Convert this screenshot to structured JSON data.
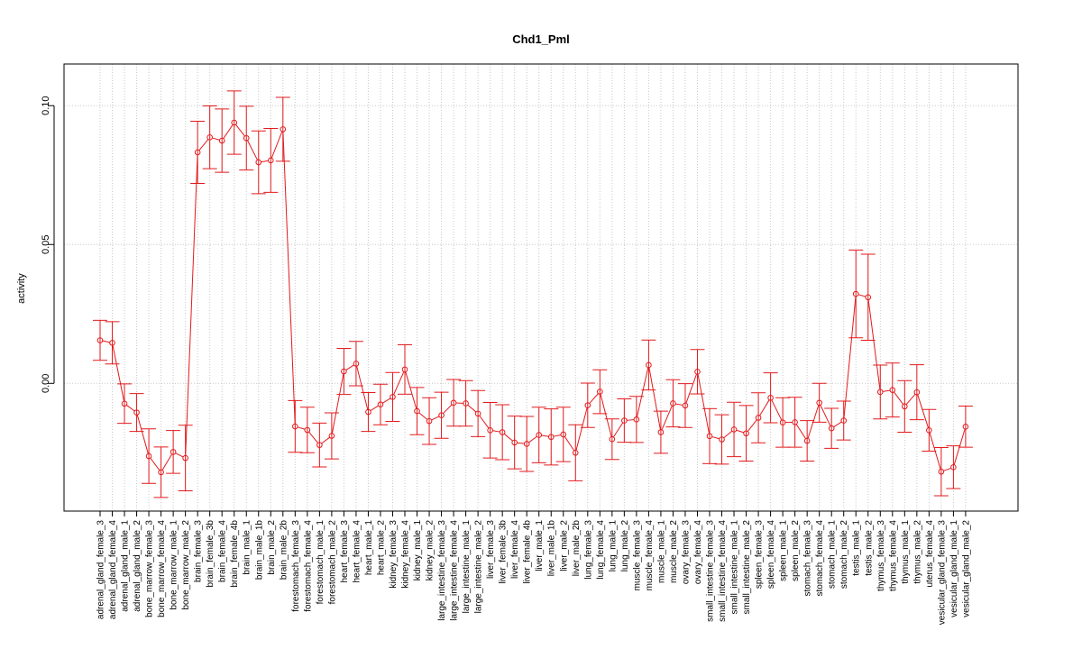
{
  "chart_data": {
    "type": "line",
    "title": "Chd1_Pml",
    "xlabel": "",
    "ylabel": "activity",
    "ylim": [
      -0.046,
      0.115
    ],
    "yticks": [
      0.0,
      0.05,
      0.1
    ],
    "ytick_labels": [
      "0.00",
      "0.05",
      "0.10"
    ],
    "grid": true,
    "grid_style": "dotted",
    "series_color": "#e31a1c",
    "categories": [
      "adrenal_gland_female_3",
      "adrenal_gland_female_4",
      "adrenal_gland_male_1",
      "adrenal_gland_male_2",
      "bone_marrow_female_3",
      "bone_marrow_female_4",
      "bone_marrow_male_1",
      "bone_marrow_male_2",
      "brain_female_3",
      "brain_female_3b",
      "brain_female_4",
      "brain_female_4b",
      "brain_male_1",
      "brain_male_1b",
      "brain_male_2",
      "brain_male_2b",
      "forestomach_female_3",
      "forestomach_female_4",
      "forestomach_male_1",
      "forestomach_male_2",
      "heart_female_3",
      "heart_female_4",
      "heart_male_1",
      "heart_male_2",
      "kidney_female_3",
      "kidney_female_4",
      "kidney_male_1",
      "kidney_male_2",
      "large_intestine_female_3",
      "large_intestine_female_4",
      "large_intestine_male_1",
      "large_intestine_male_2",
      "liver_female_3",
      "liver_female_3b",
      "liver_female_4",
      "liver_female_4b",
      "liver_male_1",
      "liver_male_1b",
      "liver_male_2",
      "liver_male_2b",
      "lung_female_3",
      "lung_female_4",
      "lung_male_1",
      "lung_male_2",
      "muscle_female_3",
      "muscle_female_4",
      "muscle_male_1",
      "muscle_male_2",
      "ovary_female_3",
      "ovary_female_4",
      "small_intestine_female_3",
      "small_intestine_female_4",
      "small_intestine_male_1",
      "small_intestine_male_2",
      "spleen_female_3",
      "spleen_female_4",
      "spleen_male_1",
      "spleen_male_2",
      "stomach_female_3",
      "stomach_female_4",
      "stomach_male_1",
      "stomach_male_2",
      "testis_male_1",
      "testis_male_2",
      "thymus_female_3",
      "thymus_female_4",
      "thymus_male_1",
      "thymus_male_2",
      "uterus_female_4",
      "vesicular_gland_female_3",
      "vesicular_gland_male_1",
      "vesicular_gland_male_2"
    ],
    "values": [
      0.0155,
      0.0146,
      -0.0073,
      -0.0105,
      -0.0262,
      -0.032,
      -0.0247,
      -0.0269,
      0.0832,
      0.0886,
      0.0874,
      0.0939,
      0.0883,
      0.0796,
      0.0803,
      0.0915,
      -0.0155,
      -0.0168,
      -0.0222,
      -0.0189,
      0.0043,
      0.0071,
      -0.0103,
      -0.0076,
      -0.0049,
      0.005,
      -0.01,
      -0.0136,
      -0.0115,
      -0.007,
      -0.0072,
      -0.0109,
      -0.0169,
      -0.0176,
      -0.0213,
      -0.0218,
      -0.0186,
      -0.0193,
      -0.0184,
      -0.025,
      -0.0079,
      -0.003,
      -0.0201,
      -0.0134,
      -0.013,
      0.0066,
      -0.0176,
      -0.0072,
      -0.008,
      0.0042,
      -0.019,
      -0.0202,
      -0.0166,
      -0.018,
      -0.0124,
      -0.0052,
      -0.0141,
      -0.014,
      -0.0207,
      -0.007,
      -0.0162,
      -0.0134,
      0.0322,
      0.031,
      -0.0031,
      -0.0024,
      -0.0083,
      -0.0032,
      -0.0169,
      -0.0318,
      -0.0302,
      -0.0156
    ],
    "errors": [
      0.0072,
      0.0076,
      0.0071,
      0.0068,
      0.0098,
      0.0091,
      0.0077,
      0.0118,
      0.0112,
      0.0113,
      0.0114,
      0.0114,
      0.0115,
      0.0113,
      0.0115,
      0.0115,
      0.0093,
      0.0082,
      0.0079,
      0.0083,
      0.0083,
      0.008,
      0.007,
      0.0073,
      0.0088,
      0.0089,
      0.0085,
      0.0084,
      0.0083,
      0.0084,
      0.0082,
      0.0083,
      0.01,
      0.0099,
      0.0095,
      0.0099,
      0.01,
      0.0101,
      0.0098,
      0.0101,
      0.008,
      0.0079,
      0.0073,
      0.0078,
      0.0083,
      0.009,
      0.0076,
      0.0085,
      0.0079,
      0.008,
      0.0099,
      0.0089,
      0.0098,
      0.01,
      0.009,
      0.009,
      0.0089,
      0.009,
      0.0073,
      0.007,
      0.0072,
      0.007,
      0.0158,
      0.0155,
      0.0097,
      0.0097,
      0.0093,
      0.0099,
      0.0075,
      0.0087,
      0.0077,
      0.0074
    ]
  }
}
